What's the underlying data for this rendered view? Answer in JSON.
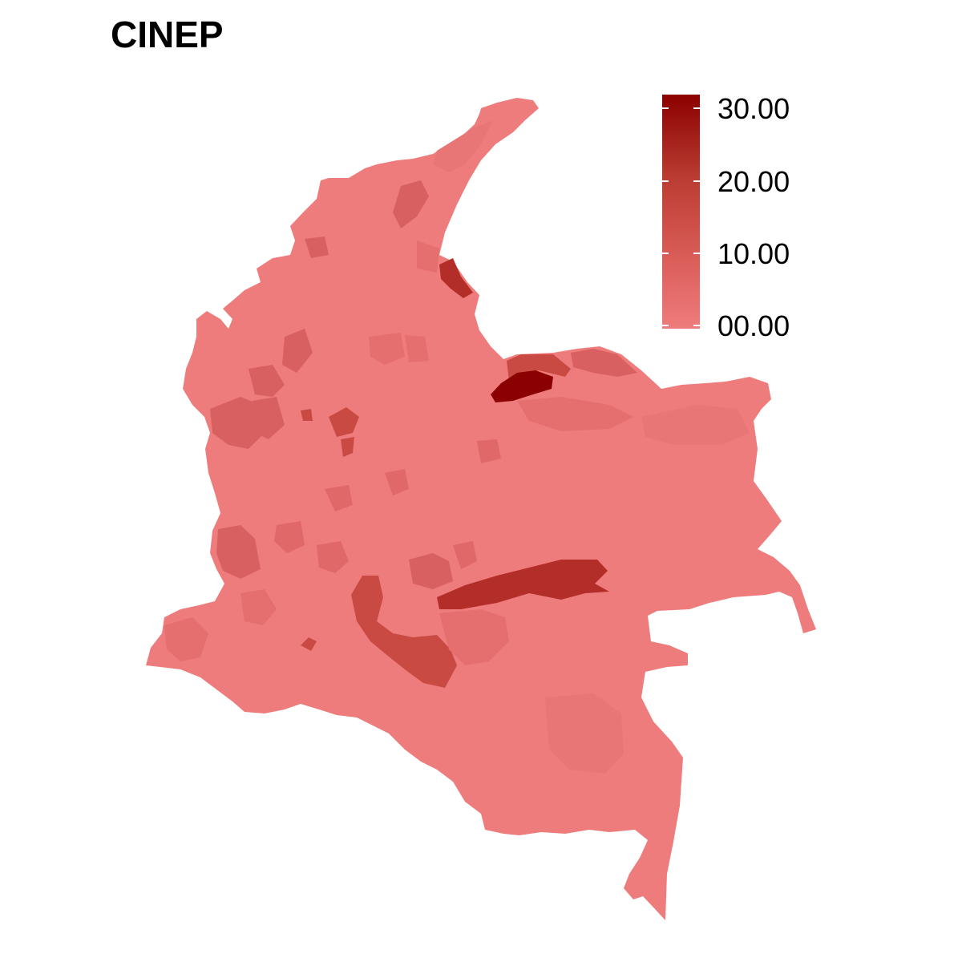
{
  "map": {
    "title": "CINEP",
    "legend": {
      "ticks": [
        "30.00",
        "20.00",
        "10.00",
        "00.00"
      ],
      "low_color": "#ee7c7c",
      "high_color": "#8b0000"
    },
    "base_color": "#ee7c7c",
    "region_colors": [
      "#e97676",
      "#d86060",
      "#c94a42",
      "#b32e28",
      "#8b0000"
    ]
  }
}
